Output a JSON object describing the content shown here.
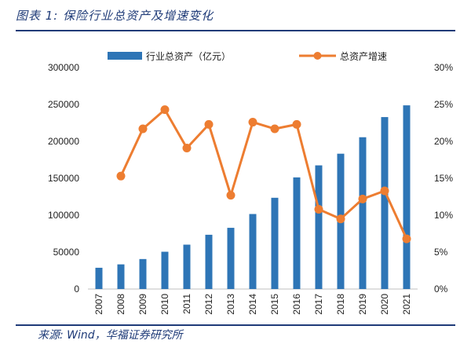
{
  "header": {
    "title": "图表 1: 保险行业总资产及增速变化"
  },
  "footer": {
    "source": "来源: Wind，华福证券研究所"
  },
  "colors": {
    "bar": "#2e75b6",
    "line": "#ed7d31",
    "rule": "#1f3b78"
  },
  "chart_data": {
    "type": "bar",
    "categories": [
      "2007",
      "2008",
      "2009",
      "2010",
      "2011",
      "2012",
      "2013",
      "2014",
      "2015",
      "2016",
      "2017",
      "2018",
      "2019",
      "2020",
      "2021"
    ],
    "series": [
      {
        "name": "行业总资产（亿元）",
        "type": "bar",
        "axis": "left",
        "values": [
          28800,
          33400,
          40600,
          50500,
          60100,
          73500,
          82900,
          101600,
          123600,
          151200,
          167500,
          183300,
          205600,
          232900,
          248800
        ]
      },
      {
        "name": "总资产增速",
        "type": "line",
        "axis": "right",
        "values": [
          null,
          15.3,
          21.7,
          24.3,
          19.1,
          22.3,
          12.7,
          22.6,
          21.7,
          22.3,
          10.8,
          9.5,
          12.2,
          13.3,
          6.8
        ]
      }
    ],
    "y_left": {
      "lim": [
        0,
        300000
      ],
      "ticks": [
        "0",
        "50000",
        "100000",
        "150000",
        "200000",
        "250000",
        "300000"
      ]
    },
    "y_right": {
      "lim": [
        0,
        30
      ],
      "ticks": [
        "0%",
        "5%",
        "10%",
        "15%",
        "20%",
        "25%",
        "30%"
      ]
    },
    "legend_position": "top-center",
    "grid": false
  }
}
